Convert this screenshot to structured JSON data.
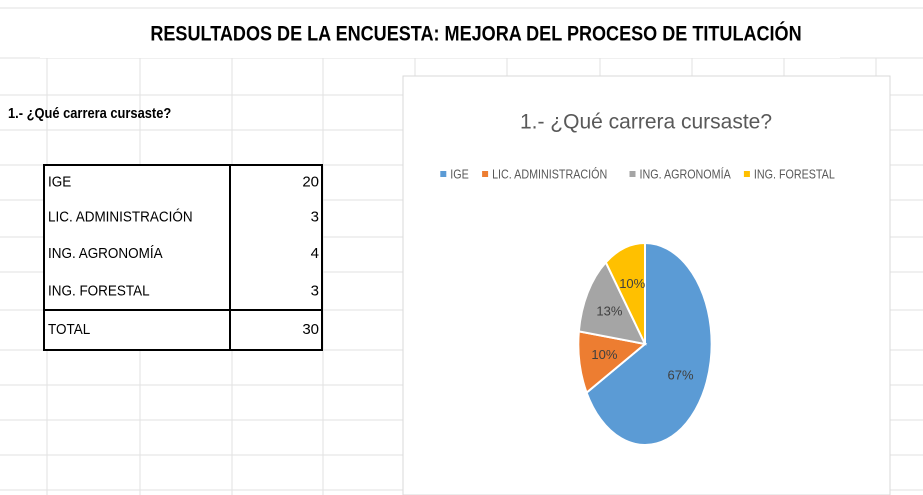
{
  "header": {
    "title": "RESULTADOS DE LA ENCUESTA: MEJORA DEL PROCESO DE TITULACIÓN"
  },
  "question": "1.- ¿Qué carrera cursaste?",
  "table": {
    "rows": [
      [
        "IGE",
        20
      ],
      [
        "LIC. ADMINISTRACIÓN",
        3
      ],
      [
        "ING. AGRONOMÍA",
        4
      ],
      [
        "ING. FORESTAL",
        3
      ]
    ],
    "total": [
      "TOTAL",
      30
    ]
  },
  "chart_data": {
    "type": "pie",
    "title": "1.- ¿Qué carrera cursaste?",
    "categories": [
      "IGE",
      "LIC. ADMINISTRACIÓN",
      "ING. AGRONOMÍA",
      "ING. FORESTAL"
    ],
    "values": [
      67,
      10,
      13,
      10
    ],
    "value_labels": [
      "67%",
      "10%",
      "13%",
      "10%"
    ],
    "colors": [
      "#5b9bd5",
      "#ed7d31",
      "#a5a5a5",
      "#ffc000"
    ],
    "legend": "top"
  }
}
